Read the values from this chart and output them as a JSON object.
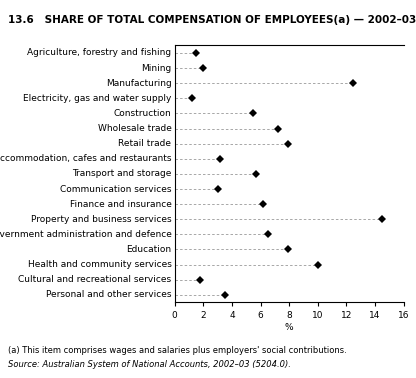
{
  "title": "13.6   SHARE OF TOTAL COMPENSATION OF EMPLOYEES(a) — 2002–03",
  "categories": [
    "Agriculture, forestry and fishing",
    "Mining",
    "Manufacturing",
    "Electricity, gas and water supply",
    "Construction",
    "Wholesale trade",
    "Retail trade",
    "Accommodation, cafes and restaurants",
    "Transport and storage",
    "Communication services",
    "Finance and insurance",
    "Property and business services",
    "Government administration and defence",
    "Education",
    "Health and community services",
    "Cultural and recreational services",
    "Personal and other services"
  ],
  "values": [
    1.5,
    2.0,
    12.5,
    1.2,
    5.5,
    7.2,
    7.9,
    3.2,
    5.7,
    3.0,
    6.2,
    14.5,
    6.5,
    7.9,
    10.0,
    1.8,
    3.5
  ],
  "xlabel": "%",
  "xlim": [
    0,
    16
  ],
  "xticks": [
    0,
    2,
    4,
    6,
    8,
    10,
    12,
    14,
    16
  ],
  "footnote1": "(a) This item comprises wages and salaries plus employers' social contributions.",
  "footnote2": "Source: Australian System of National Accounts, 2002–03 (5204.0).",
  "marker_color": "#000000",
  "marker_size": 4.5,
  "dash_color": "#999999",
  "background_color": "#ffffff",
  "title_fontsize": 7.5,
  "label_fontsize": 6.5,
  "tick_fontsize": 6.5,
  "footnote_fontsize": 6.0
}
